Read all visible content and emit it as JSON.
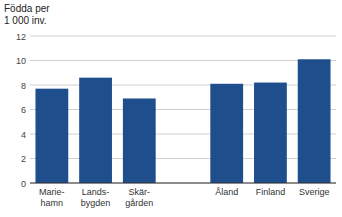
{
  "chart_data": {
    "type": "bar",
    "ylabel": "Födda per\n1 000 inv.",
    "categories": [
      "Marie-\nhamn",
      "Lands-\nbygden",
      "Skär-\ngården",
      null,
      "Åland",
      "Finland",
      "Sverige"
    ],
    "values": [
      7.7,
      8.6,
      6.9,
      null,
      8.1,
      8.2,
      10.1
    ],
    "color": "#1F4E8C",
    "ylim": [
      0,
      12
    ],
    "yticks": [
      0,
      2,
      4,
      6,
      8,
      10,
      12
    ],
    "grid": true
  }
}
